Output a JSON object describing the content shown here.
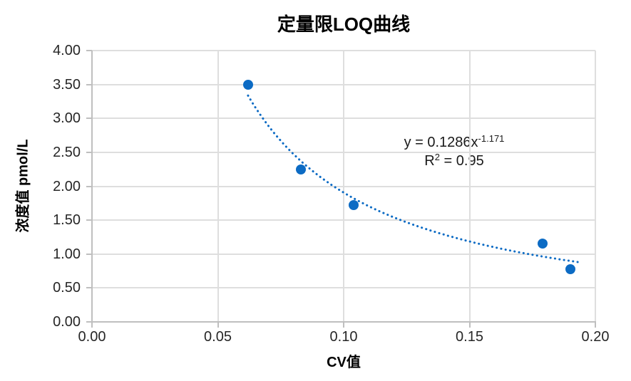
{
  "colors": {
    "series": "#0c6bc4",
    "gridline": "#dedede",
    "axis": "#bfbfbf",
    "text": "#262626",
    "title": "#000000"
  },
  "annotation": {
    "eq_main": "y = 0.1286x",
    "eq_exp": "-1.171",
    "r2_base": "R",
    "r2_exp": "2",
    "r2_rest": " = 0.95"
  },
  "chart_data": {
    "type": "scatter",
    "title": "定量限LOQ曲线",
    "xlabel": "CV值",
    "ylabel": "浓度值 pmol/L",
    "xlim": [
      0,
      0.2
    ],
    "ylim": [
      0,
      4
    ],
    "grid": true,
    "legend": false,
    "xticks": [
      0,
      0.05,
      0.1,
      0.15,
      0.2
    ],
    "xtick_labels": [
      "0.00",
      "0.05",
      "0.10",
      "0.15",
      "0.20"
    ],
    "yticks": [
      0,
      0.5,
      1,
      1.5,
      2,
      2.5,
      3,
      3.5,
      4
    ],
    "ytick_labels": [
      "0.00",
      "0.50",
      "1.00",
      "1.50",
      "2.00",
      "2.50",
      "3.00",
      "3.50",
      "4.00"
    ],
    "points": [
      {
        "x": 0.062,
        "y": 3.5
      },
      {
        "x": 0.083,
        "y": 2.25
      },
      {
        "x": 0.104,
        "y": 1.72
      },
      {
        "x": 0.179,
        "y": 1.16
      },
      {
        "x": 0.19,
        "y": 0.78
      }
    ],
    "trendline": {
      "type": "power",
      "coefficient": 0.1286,
      "exponent": -1.171,
      "x_start": 0.062,
      "x_end": 0.194,
      "style": "dotted",
      "equation": "y = 0.1286x^-1.171",
      "r_squared": "R² = 0.95"
    }
  }
}
